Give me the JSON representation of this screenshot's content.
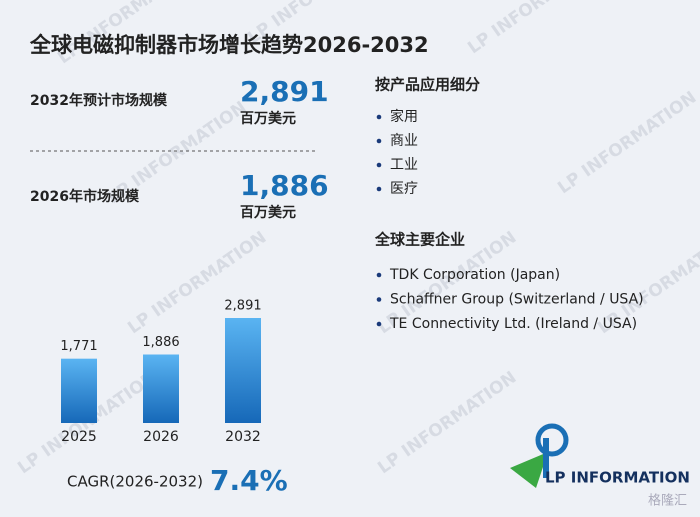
{
  "title": "全球电磁抑制器市场增长趋势2026-2032",
  "stats": [
    {
      "label": "2032年预计市场规模",
      "value": "2,891",
      "unit": "百万美元"
    },
    {
      "label": "2026年市场规模",
      "value": "1,886",
      "unit": "百万美元"
    }
  ],
  "segments": {
    "heading": "按产品应用细分",
    "items": [
      "家用",
      "商业",
      "工业",
      "医疗"
    ]
  },
  "companies": {
    "heading": "全球主要企业",
    "items": [
      "TDK Corporation (Japan)",
      "Schaffner Group (Switzerland / USA)",
      "TE Connectivity Ltd. (Ireland / USA)"
    ]
  },
  "cagr": {
    "label": "CAGR(2026-2032)",
    "value": "7.4%"
  },
  "logo": "LP INFORMATION",
  "watermark": "LP INFORMATION",
  "corner_mark": "格隆汇",
  "chart_data": {
    "type": "bar",
    "categories": [
      "2025",
      "2026",
      "2032"
    ],
    "values": [
      1771,
      1886,
      2891
    ],
    "value_labels": [
      "1,771",
      "1,886",
      "2,891"
    ],
    "color": "#2f8fe0"
  }
}
